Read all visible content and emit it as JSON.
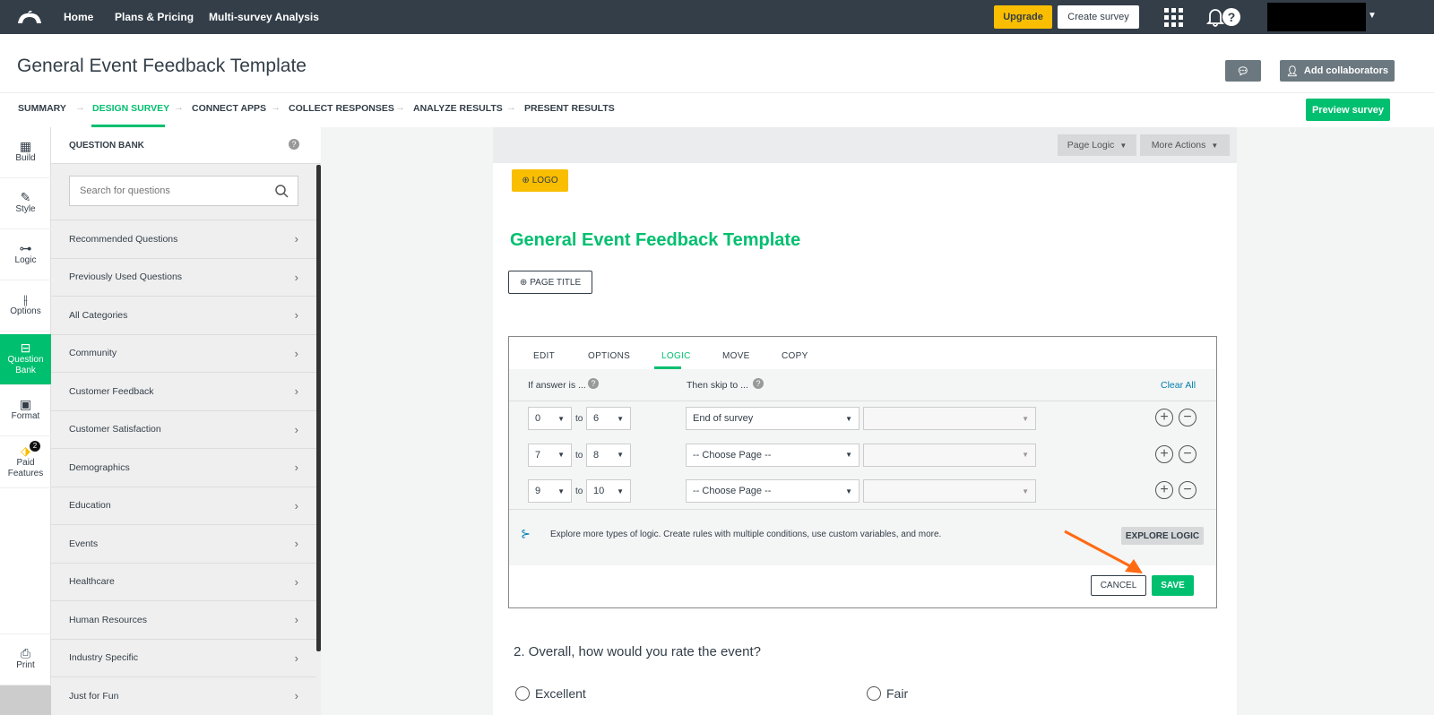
{
  "topbar": {
    "nav": [
      "Home",
      "Plans & Pricing",
      "Multi-survey Analysis"
    ],
    "upgrade": "Upgrade",
    "create_survey": "Create survey",
    "colors": {
      "bg": "#333e48",
      "upgrade": "#f9be00"
    }
  },
  "header": {
    "title": "General Event Feedback Template",
    "add_collaborators": "Add collaborators",
    "preview": "Preview survey"
  },
  "steps": [
    {
      "label": "SUMMARY"
    },
    {
      "label": "DESIGN SURVEY",
      "active": true
    },
    {
      "label": "CONNECT APPS"
    },
    {
      "label": "COLLECT RESPONSES"
    },
    {
      "label": "ANALYZE RESULTS"
    },
    {
      "label": "PRESENT RESULTS"
    }
  ],
  "rail": [
    {
      "label": "Build",
      "icon": "build-icon"
    },
    {
      "label": "Style",
      "icon": "brush-icon"
    },
    {
      "label": "Logic",
      "icon": "logic-icon"
    },
    {
      "label": "Options",
      "icon": "sliders-icon"
    },
    {
      "label": "Question Bank",
      "icon": "bank-icon",
      "active": true
    },
    {
      "label": "Format",
      "icon": "format-icon"
    },
    {
      "label": "Paid Features",
      "icon": "tag-icon",
      "badge": "2"
    },
    {
      "label": "Print",
      "icon": "print-icon"
    }
  ],
  "question_bank": {
    "title": "QUESTION BANK",
    "search_placeholder": "Search for questions",
    "items": [
      "Recommended Questions",
      "Previously Used Questions",
      "All Categories",
      "Community",
      "Customer Feedback",
      "Customer Satisfaction",
      "Demographics",
      "Education",
      "Events",
      "Healthcare",
      "Human Resources",
      "Industry Specific",
      "Just for Fun"
    ]
  },
  "canvas": {
    "page_logic": "Page Logic",
    "more_actions": "More Actions",
    "logo": "LOGO",
    "survey_title": "General Event Feedback Template",
    "page_title": "PAGE TITLE"
  },
  "logic": {
    "tabs": [
      "EDIT",
      "OPTIONS",
      "LOGIC",
      "MOVE",
      "COPY"
    ],
    "active_tab": "LOGIC",
    "if_answer": "If answer is ...",
    "then_skip": "Then skip to ...",
    "clear_all": "Clear All",
    "to": "to",
    "rows": [
      {
        "from": "0",
        "to": "6",
        "skip": "End of survey"
      },
      {
        "from": "7",
        "to": "8",
        "skip": "-- Choose Page --"
      },
      {
        "from": "9",
        "to": "10",
        "skip": "-- Choose Page --"
      }
    ],
    "explore_text": "Explore more types of logic. Create rules with multiple conditions, use custom variables, and more.",
    "explore_button": "EXPLORE LOGIC",
    "cancel": "CANCEL",
    "save": "SAVE"
  },
  "question2": {
    "text": "2. Overall, how would you rate the event?",
    "options": [
      "Excellent",
      "Fair"
    ]
  },
  "accent": "#00bf6f"
}
